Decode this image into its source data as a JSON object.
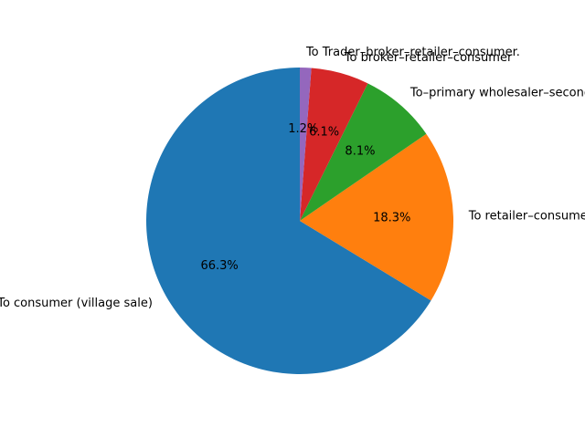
{
  "chart_data": {
    "type": "pie",
    "title": "",
    "start_angle_deg": 90,
    "direction": "counterclockwise",
    "slices": [
      {
        "label": "To consumer (village sale)",
        "value": 66.3,
        "pct_label": "66.3%",
        "color": "#1f77b4"
      },
      {
        "label": "To retailer–consumer",
        "value": 18.3,
        "pct_label": "18.3%",
        "color": "#ff7f0e"
      },
      {
        "label": "To–primary wholesaler–secondary wholesaler–retailer–consumer",
        "value": 8.1,
        "pct_label": "8.1%",
        "color": "#2ca02c"
      },
      {
        "label": "To broker–retailer–consumer",
        "value": 6.1,
        "pct_label": "6.1%",
        "color": "#d62728"
      },
      {
        "label": "To Trader–broker–retailer–consumer.",
        "value": 1.2,
        "pct_label": "1.2%",
        "color": "#9467bd"
      }
    ]
  }
}
